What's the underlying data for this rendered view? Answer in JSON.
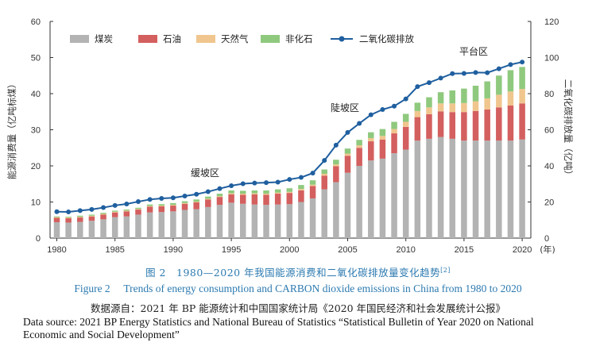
{
  "chart_data": {
    "type": "bar",
    "stacked": true,
    "x": [
      1980,
      1981,
      1982,
      1983,
      1984,
      1985,
      1986,
      1987,
      1988,
      1989,
      1990,
      1991,
      1992,
      1993,
      1994,
      1995,
      1996,
      1997,
      1998,
      1999,
      2000,
      2001,
      2002,
      2003,
      2004,
      2005,
      2006,
      2007,
      2008,
      2009,
      2010,
      2011,
      2012,
      2013,
      2014,
      2015,
      2016,
      2017,
      2018,
      2019,
      2020
    ],
    "xticks": [
      "1980",
      "1985",
      "1990",
      "1995",
      "2000",
      "2005",
      "2010",
      "2015",
      "2020"
    ],
    "xunit": "(年)",
    "ylabel_left": "能源消费量（亿吨标煤）",
    "ylabel_right": "二氧化碳排放量（亿吨）",
    "ylim_left": [
      0,
      60
    ],
    "ylim_right": [
      0,
      120
    ],
    "yticks_left": [
      "0",
      "10",
      "20",
      "30",
      "40",
      "50",
      "60"
    ],
    "yticks_right": [
      "0",
      "20",
      "40",
      "60",
      "80",
      "100",
      "120"
    ],
    "legend_position": "top",
    "series": [
      {
        "name": "煤炭",
        "color": "#b3b3b3",
        "axis": "left",
        "values": [
          4.4,
          4.3,
          4.5,
          4.8,
          5.2,
          5.8,
          6.0,
          6.5,
          7.1,
          7.2,
          7.4,
          7.8,
          8.0,
          8.6,
          9.2,
          9.8,
          9.5,
          9.3,
          9.2,
          9.3,
          9.4,
          10.0,
          11.0,
          13.5,
          15.5,
          18.1,
          20.0,
          21.5,
          22.0,
          23.5,
          24.5,
          27.0,
          27.5,
          28.0,
          27.5,
          27.0,
          27.0,
          27.0,
          27.0,
          27.0,
          27.3
        ]
      },
      {
        "name": "石油",
        "color": "#d45f5f",
        "axis": "left",
        "values": [
          1.2,
          1.2,
          1.2,
          1.2,
          1.3,
          1.3,
          1.4,
          1.4,
          1.6,
          1.6,
          1.6,
          1.7,
          1.9,
          2.1,
          2.2,
          2.3,
          2.5,
          2.8,
          2.8,
          3.0,
          3.1,
          3.2,
          3.4,
          3.8,
          4.4,
          4.7,
          5.0,
          5.3,
          5.3,
          5.5,
          6.3,
          6.5,
          6.8,
          7.1,
          7.4,
          7.9,
          8.2,
          8.6,
          9.2,
          9.7,
          10.0
        ]
      },
      {
        "name": "天然气",
        "color": "#f0c68e",
        "axis": "left",
        "values": [
          0.2,
          0.2,
          0.2,
          0.2,
          0.2,
          0.2,
          0.2,
          0.2,
          0.2,
          0.2,
          0.2,
          0.2,
          0.2,
          0.2,
          0.2,
          0.3,
          0.3,
          0.3,
          0.3,
          0.3,
          0.3,
          0.4,
          0.4,
          0.5,
          0.5,
          0.6,
          0.7,
          0.9,
          1.0,
          1.2,
          1.4,
          1.7,
          1.9,
          2.2,
          2.4,
          2.5,
          2.7,
          3.1,
          3.5,
          3.9,
          4.0
        ]
      },
      {
        "name": "非化石",
        "color": "#8fc97e",
        "axis": "left",
        "values": [
          0.2,
          0.2,
          0.3,
          0.3,
          0.3,
          0.3,
          0.3,
          0.3,
          0.4,
          0.4,
          0.5,
          0.5,
          0.6,
          0.6,
          0.7,
          0.8,
          0.8,
          0.8,
          0.9,
          0.9,
          1.0,
          1.1,
          1.2,
          1.2,
          1.3,
          1.4,
          1.5,
          1.6,
          1.9,
          2.0,
          2.2,
          2.3,
          2.8,
          3.1,
          3.6,
          4.0,
          4.3,
          4.7,
          5.3,
          5.9,
          6.1
        ]
      },
      {
        "name": "二氧化碳排放",
        "color": "#1f5f9f",
        "axis": "right",
        "type": "line",
        "values": [
          14.6,
          14.5,
          15.2,
          15.9,
          16.9,
          18.1,
          18.9,
          20.2,
          21.4,
          22.0,
          22.3,
          23.3,
          24.3,
          25.7,
          27.4,
          29.0,
          30.1,
          30.5,
          30.7,
          31.0,
          32.5,
          33.6,
          36.0,
          43.0,
          51.5,
          58.5,
          63.5,
          68.3,
          71.2,
          73.1,
          77.1,
          83.9,
          86.1,
          88.6,
          91.1,
          91.2,
          91.7,
          91.6,
          93.8,
          96.1,
          97.5
        ]
      }
    ],
    "annotations": [
      "缓坡区",
      "陡坡区",
      "平台区"
    ]
  },
  "caption": {
    "cn_title": "图 2　1980—2020 年我国能源消费和二氧化碳排放量变化趋势",
    "cn_ref": "[2]",
    "en_title": "Figure 2　 Trends of energy consumption and CARBON dioxide emissions in China from 1980 to 2020",
    "cn_source": "数据源自：2021 年 BP 能源统计和中国国家统计局《2020 年国民经济和社会发展统计公报》",
    "en_source": "Data source:  2021 BP Energy Statistics and National Bureau of Statistics “Statistical Bulletin of Year 2020 on National Economic and Social Development”"
  }
}
